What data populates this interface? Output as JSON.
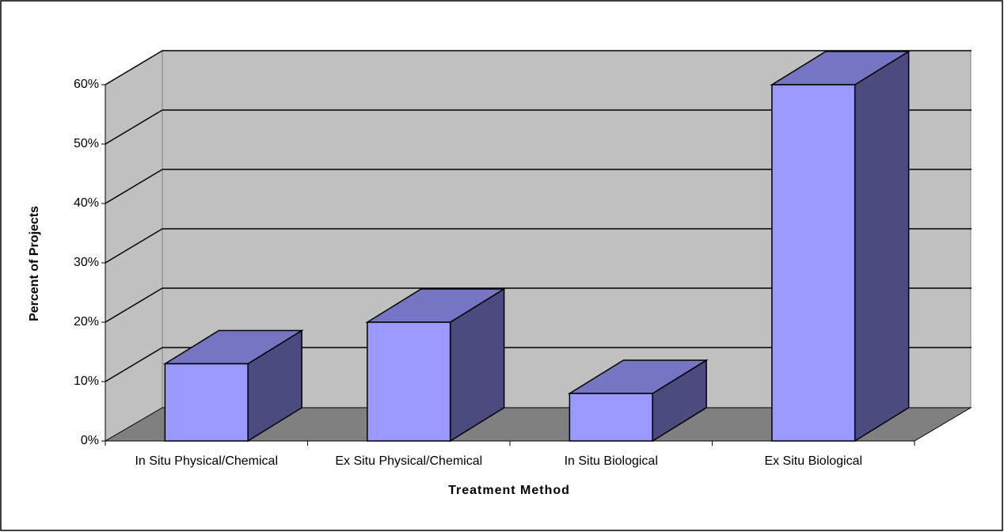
{
  "chart_data": {
    "type": "bar3d",
    "xlabel": "Treatment Method",
    "ylabel": "Percent of Projects",
    "categories": [
      "In Situ Physical/Chemical",
      "Ex Situ Physical/Chemical",
      "In Situ Biological",
      "Ex Situ Biological"
    ],
    "values": [
      13,
      20,
      8,
      60
    ],
    "color": "#9999ff",
    "ylim": [
      0,
      60
    ],
    "yticks": [
      {
        "value": 0,
        "label": "0%"
      },
      {
        "value": 10,
        "label": "10%"
      },
      {
        "value": 20,
        "label": "20%"
      },
      {
        "value": 30,
        "label": "30%"
      },
      {
        "value": 40,
        "label": "40%"
      },
      {
        "value": 50,
        "label": "50%"
      },
      {
        "value": 60,
        "label": "60%"
      }
    ],
    "grid": true
  }
}
